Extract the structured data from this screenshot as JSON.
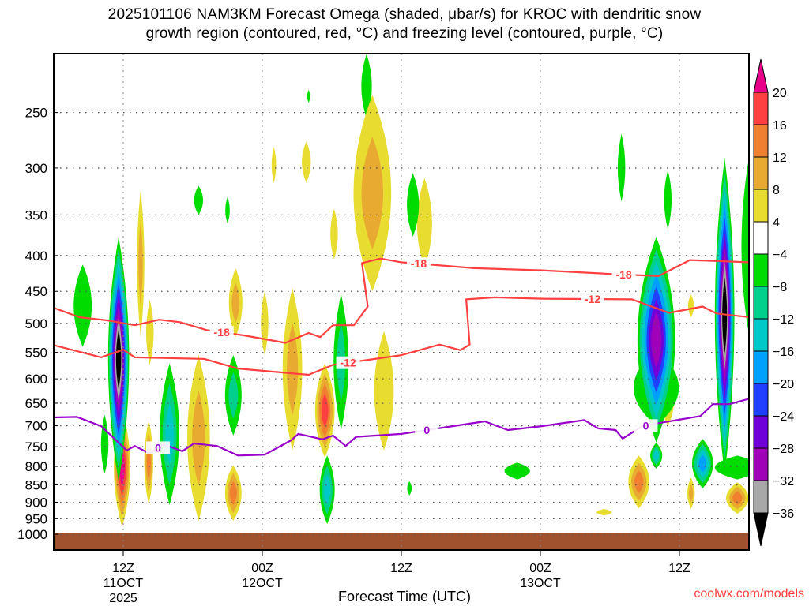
{
  "title": {
    "line1": "2025101106 NAM3KM Forecast Omega (shaded, μbar/s) for KROC with dendritic snow",
    "line2": "growth region (contoured, red, °C) and freezing level (contoured, purple, °C)"
  },
  "credit": "coolwx.com/models",
  "chart_data": {
    "type": "heatmap",
    "title": "2025101106 NAM3KM Forecast Omega (shaded, μbar/s) for KROC with dendritic snow growth region (contoured, red, °C) and freezing level (contoured, purple, °C)",
    "xlabel": "Forecast Time (UTC)",
    "ylabel": "",
    "x_units": "forecast hour from 06Z 11OCT 2025",
    "xlim": [
      0,
      60
    ],
    "ylim_hpa": [
      206,
      1053
    ],
    "y_scale": "log-pressure",
    "grid": true,
    "y_ticks": [
      250,
      300,
      350,
      400,
      450,
      500,
      550,
      600,
      650,
      700,
      750,
      800,
      850,
      900,
      950,
      1000
    ],
    "x_ticks": [
      {
        "hour": 6,
        "lines": [
          "12Z",
          "11OCT",
          "2025"
        ]
      },
      {
        "hour": 18,
        "lines": [
          "00Z",
          "12OCT"
        ]
      },
      {
        "hour": 30,
        "lines": [
          "12Z"
        ]
      },
      {
        "hour": 42,
        "lines": [
          "00Z",
          "13OCT"
        ]
      },
      {
        "hour": 54,
        "lines": [
          "12Z"
        ]
      }
    ],
    "surface_pressure_hpa": 995,
    "colorbar": {
      "labels": [
        "20",
        "16",
        "12",
        "8",
        "4",
        "-4",
        "-8",
        "-12",
        "-16",
        "-20",
        "-24",
        "-28",
        "-32",
        "-36"
      ],
      "colors": [
        "#ff4040",
        "#f08030",
        "#e8aa30",
        "#e8dc30",
        "#ffffff",
        "#00dc00",
        "#00d08c",
        "#00c8c8",
        "#00a0ff",
        "#2040ff",
        "#7000d8",
        "#a000b8",
        "#a8a8a8"
      ],
      "over_color": "#e8008a",
      "under_color": "#000000"
    },
    "contours": [
      {
        "name": "-18C",
        "color": "#ff4040",
        "label": "-18",
        "label_hours": [
          14.5,
          31.5,
          49.2
        ],
        "points": [
          [
            0,
            475
          ],
          [
            2.25,
            490
          ],
          [
            4.6,
            495
          ],
          [
            7.0,
            503
          ],
          [
            9.1,
            494
          ],
          [
            10.9,
            498
          ],
          [
            13.2,
            511
          ],
          [
            16.4,
            520
          ],
          [
            20.0,
            533
          ],
          [
            22.0,
            516
          ],
          [
            23.0,
            523
          ],
          [
            24.1,
            503
          ],
          [
            25.9,
            503
          ],
          [
            27.1,
            473
          ],
          [
            26.6,
            410
          ],
          [
            28.2,
            404
          ],
          [
            30.0,
            409
          ],
          [
            36.3,
            417
          ],
          [
            42.1,
            420
          ],
          [
            48.1,
            425
          ],
          [
            52.2,
            428
          ],
          [
            54.9,
            406
          ],
          [
            60.1,
            409
          ]
        ]
      },
      {
        "name": "-12C",
        "color": "#ff4040",
        "label": "-12",
        "label_hours": [
          25.4,
          46.5
        ],
        "points": [
          [
            0,
            537
          ],
          [
            4.1,
            559
          ],
          [
            6.0,
            545
          ],
          [
            7.0,
            559
          ],
          [
            13.0,
            562
          ],
          [
            15.9,
            580
          ],
          [
            22.0,
            592
          ],
          [
            24.1,
            573
          ],
          [
            30.0,
            555
          ],
          [
            33.3,
            536
          ],
          [
            35.1,
            546
          ],
          [
            35.9,
            536
          ],
          [
            35.6,
            462
          ],
          [
            38.1,
            459
          ],
          [
            42.1,
            461
          ],
          [
            49.9,
            462
          ],
          [
            53.1,
            483
          ],
          [
            56.0,
            473
          ],
          [
            57.2,
            484
          ],
          [
            60.1,
            490
          ]
        ]
      },
      {
        "name": "0C",
        "color": "#9900cc",
        "label": "0",
        "label_hours": [
          9.0,
          32.2,
          51.1
        ],
        "points": [
          [
            0,
            681
          ],
          [
            2.0,
            680
          ],
          [
            4.1,
            701
          ],
          [
            6.3,
            759
          ],
          [
            7.0,
            748
          ],
          [
            8.2,
            766
          ],
          [
            9.5,
            744
          ],
          [
            11.1,
            761
          ],
          [
            12.1,
            742
          ],
          [
            14.1,
            748
          ],
          [
            15.9,
            772
          ],
          [
            18.2,
            770
          ],
          [
            20.5,
            734
          ],
          [
            21.1,
            719
          ],
          [
            23.2,
            732
          ],
          [
            24.1,
            723
          ],
          [
            25.2,
            748
          ],
          [
            26.1,
            726
          ],
          [
            30.0,
            719
          ],
          [
            37.2,
            690
          ],
          [
            39.2,
            710
          ],
          [
            42.1,
            701
          ],
          [
            45.8,
            687
          ],
          [
            47.0,
            706
          ],
          [
            48.5,
            710
          ],
          [
            49.1,
            730
          ],
          [
            50.8,
            701
          ],
          [
            52.2,
            694
          ],
          [
            55.8,
            678
          ],
          [
            56.9,
            652
          ],
          [
            58.3,
            652
          ],
          [
            60.1,
            640
          ]
        ]
      }
    ],
    "omega_cells": [
      {
        "hour": 5.6,
        "p_top": 376,
        "p_bottom": 842,
        "half_width_hours": 1.4,
        "peak": -40
      },
      {
        "hour": 5.9,
        "p_top": 662,
        "p_bottom": 977,
        "half_width_hours": 1.1,
        "peak": 22
      },
      {
        "hour": 2.5,
        "p_top": 412,
        "p_bottom": 540,
        "half_width_hours": 1.2,
        "peak": -6
      },
      {
        "hour": 4.4,
        "p_top": 675,
        "p_bottom": 820,
        "half_width_hours": 0.5,
        "peak": -6
      },
      {
        "hour": 7.5,
        "p_top": 322,
        "p_bottom": 523,
        "half_width_hours": 0.5,
        "peak": 10
      },
      {
        "hour": 8.3,
        "p_top": 463,
        "p_bottom": 573,
        "half_width_hours": 0.5,
        "peak": 6
      },
      {
        "hour": 8.2,
        "p_top": 686,
        "p_bottom": 908,
        "half_width_hours": 0.6,
        "peak": 14
      },
      {
        "hour": 10.0,
        "p_top": 570,
        "p_bottom": 908,
        "half_width_hours": 1.3,
        "peak": -14
      },
      {
        "hour": 12.5,
        "p_top": 555,
        "p_bottom": 957,
        "half_width_hours": 1.5,
        "peak": 11
      },
      {
        "hour": 15.5,
        "p_top": 555,
        "p_bottom": 723,
        "half_width_hours": 1.1,
        "peak": -12
      },
      {
        "hour": 15.7,
        "p_top": 417,
        "p_bottom": 523,
        "half_width_hours": 0.9,
        "peak": 10
      },
      {
        "hour": 15.5,
        "p_top": 797,
        "p_bottom": 957,
        "half_width_hours": 1.1,
        "peak": 14
      },
      {
        "hour": 18.2,
        "p_top": 450,
        "p_bottom": 555,
        "half_width_hours": 0.5,
        "peak": 6
      },
      {
        "hour": 20.6,
        "p_top": 445,
        "p_bottom": 759,
        "half_width_hours": 1.3,
        "peak": 11
      },
      {
        "hour": 23.4,
        "p_top": 570,
        "p_bottom": 778,
        "half_width_hours": 1.3,
        "peak": 17
      },
      {
        "hour": 24.8,
        "p_top": 454,
        "p_bottom": 710,
        "half_width_hours": 1.0,
        "peak": -12
      },
      {
        "hour": 23.6,
        "p_top": 772,
        "p_bottom": 967,
        "half_width_hours": 1.0,
        "peak": -16
      },
      {
        "hour": 27.5,
        "p_top": 236,
        "p_bottom": 450,
        "half_width_hours": 2.5,
        "peak": 10
      },
      {
        "hour": 28.5,
        "p_top": 513,
        "p_bottom": 759,
        "half_width_hours": 1.3,
        "peak": 6
      },
      {
        "hour": 32.0,
        "p_top": 310,
        "p_bottom": 417,
        "half_width_hours": 1.0,
        "peak": 6
      },
      {
        "hour": 27.0,
        "p_top": 206,
        "p_bottom": 255,
        "half_width_hours": 0.7,
        "peak": -6
      },
      {
        "hour": 31.0,
        "p_top": 305,
        "p_bottom": 376,
        "half_width_hours": 0.8,
        "peak": -6
      },
      {
        "hour": 12.5,
        "p_top": 318,
        "p_bottom": 350,
        "half_width_hours": 0.6,
        "peak": -6
      },
      {
        "hour": 15.0,
        "p_top": 330,
        "p_bottom": 360,
        "half_width_hours": 0.3,
        "peak": -6
      },
      {
        "hour": 40.0,
        "p_top": 790,
        "p_bottom": 835,
        "half_width_hours": 1.7,
        "peak": -6
      },
      {
        "hour": 52.0,
        "p_top": 545,
        "p_bottom": 700,
        "half_width_hours": 3.0,
        "peak": -10
      },
      {
        "hour": 52.0,
        "p_top": 376,
        "p_bottom": 740,
        "half_width_hours": 2.5,
        "peak": -30
      },
      {
        "hour": 60.0,
        "p_top": 290,
        "p_bottom": 520,
        "half_width_hours": 1.0,
        "peak": -6
      },
      {
        "hour": 57.9,
        "p_top": 290,
        "p_bottom": 820,
        "half_width_hours": 1.3,
        "peak": -38
      },
      {
        "hour": 52.0,
        "p_top": 740,
        "p_bottom": 806,
        "half_width_hours": 0.8,
        "peak": -14
      },
      {
        "hour": 59.0,
        "p_top": 772,
        "p_bottom": 835,
        "half_width_hours": 3.0,
        "peak": -8
      },
      {
        "hour": 56.0,
        "p_top": 731,
        "p_bottom": 860,
        "half_width_hours": 1.4,
        "peak": -18
      },
      {
        "hour": 50.5,
        "p_top": 772,
        "p_bottom": 918,
        "half_width_hours": 1.4,
        "peak": 14
      },
      {
        "hour": 59.0,
        "p_top": 843,
        "p_bottom": 935,
        "half_width_hours": 1.5,
        "peak": 13
      },
      {
        "hour": 53.0,
        "p_top": 600,
        "p_bottom": 700,
        "half_width_hours": 0.8,
        "peak": 8
      },
      {
        "hour": 55.0,
        "p_top": 455,
        "p_bottom": 490,
        "half_width_hours": 0.4,
        "peak": 6
      },
      {
        "hour": 55.0,
        "p_top": 830,
        "p_bottom": 920,
        "half_width_hours": 0.5,
        "peak": 11
      },
      {
        "hour": 49.0,
        "p_top": 268,
        "p_bottom": 335,
        "half_width_hours": 0.5,
        "peak": -6
      },
      {
        "hour": 53.0,
        "p_top": 302,
        "p_bottom": 367,
        "half_width_hours": 0.5,
        "peak": -6
      },
      {
        "hour": 47.5,
        "p_top": 920,
        "p_bottom": 940,
        "half_width_hours": 1.0,
        "peak": 6
      },
      {
        "hour": 19.0,
        "p_top": 280,
        "p_bottom": 315,
        "half_width_hours": 0.3,
        "peak": 6
      },
      {
        "hour": 21.8,
        "p_top": 275,
        "p_bottom": 315,
        "half_width_hours": 0.6,
        "peak": 6
      },
      {
        "hour": 24.2,
        "p_top": 343,
        "p_bottom": 405,
        "half_width_hours": 0.5,
        "peak": 6
      },
      {
        "hour": 22.0,
        "p_top": 232,
        "p_bottom": 242,
        "half_width_hours": 0.2,
        "peak": -6
      },
      {
        "hour": 30.7,
        "p_top": 840,
        "p_bottom": 880,
        "half_width_hours": 0.3,
        "peak": -6
      }
    ]
  }
}
